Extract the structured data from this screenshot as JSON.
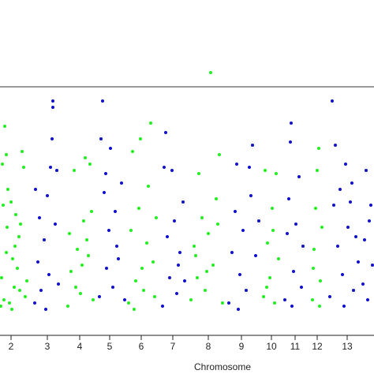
{
  "chart_data": {
    "type": "scatter",
    "x_label": "Chromosome",
    "xlim": [
      0,
      474
    ],
    "ylim": [
      0,
      10
    ],
    "xticks": [
      {
        "value": 14,
        "label": "2"
      },
      {
        "value": 60,
        "label": "3"
      },
      {
        "value": 101,
        "label": "4"
      },
      {
        "value": 139,
        "label": "5"
      },
      {
        "value": 179,
        "label": "6"
      },
      {
        "value": 219,
        "label": "7"
      },
      {
        "value": 264,
        "label": "8"
      },
      {
        "value": 306,
        "label": "9"
      },
      {
        "value": 344,
        "label": "10"
      },
      {
        "value": 374,
        "label": "11"
      },
      {
        "value": 402,
        "label": "12"
      },
      {
        "value": 440,
        "label": "13"
      }
    ],
    "threshold": 7.25,
    "grid": false,
    "series": [
      {
        "color": "#22ee22",
        "x": [
          2,
          4,
          6,
          8,
          3,
          5,
          9,
          1,
          12,
          16,
          20,
          24,
          10,
          14,
          18,
          22,
          26,
          32,
          34,
          8,
          28,
          30,
          15,
          25,
          19,
          86,
          90,
          94,
          98,
          102,
          106,
          108,
          112,
          114,
          118,
          88,
          96,
          104,
          110,
          116,
          163,
          166,
          168,
          172,
          176,
          178,
          182,
          186,
          191,
          194,
          198,
          170,
          180,
          188,
          196,
          242,
          246,
          250,
          252,
          256,
          260,
          264,
          267,
          270,
          274,
          278,
          282,
          248,
          262,
          276,
          334,
          336,
          339,
          342,
          345,
          348,
          350,
          353,
          338,
          346,
          396,
          398,
          400,
          402,
          404,
          406,
          408,
          397,
          405
        ],
        "values": [
          1.2,
          3.5,
          6.0,
          2.0,
          4.8,
          0.5,
          2.8,
          0.3,
          0.4,
          1.8,
          3.2,
          2.5,
          4.0,
          3.6,
          0.9,
          1.5,
          2.9,
          0.6,
          1.1,
          5.1,
          5.2,
          4.7,
          0.2,
          0.8,
          2.2,
          0.3,
          1.4,
          4.6,
          2.1,
          0.7,
          3.0,
          5.0,
          1.9,
          4.8,
          0.5,
          2.6,
          0.9,
          1.6,
          2.4,
          3.3,
          0.4,
          2.7,
          5.2,
          1.1,
          3.4,
          5.6,
          0.8,
          2.3,
          6.1,
          1.7,
          3.1,
          0.2,
          1.5,
          4.1,
          0.6,
          0.5,
          2.2,
          1.2,
          4.5,
          3.1,
          0.8,
          2.6,
          7.7,
          1.6,
          3.7,
          5.1,
          0.4,
          1.9,
          1.4,
          2.9,
          0.6,
          4.6,
          2.3,
          1.2,
          3.4,
          0.4,
          4.5,
          1.8,
          0.9,
          2.7,
          0.5,
          2.1,
          3.4,
          4.6,
          5.3,
          1.1,
          2.8,
          1.5,
          0.3
        ]
      },
      {
        "color": "#1010cc",
        "x": [
          44,
          45,
          48,
          52,
          56,
          60,
          62,
          64,
          66,
          67,
          67,
          70,
          72,
          74,
          50,
          58,
          126,
          128,
          130,
          132,
          135,
          138,
          140,
          143,
          146,
          150,
          154,
          158,
          134,
          148,
          206,
          208,
          210,
          212,
          215,
          218,
          221,
          224,
          228,
          232,
          234,
          226,
          290,
          294,
          298,
          300,
          304,
          308,
          312,
          316,
          320,
          324,
          328,
          302,
          318,
          361,
          364,
          366,
          368,
          369,
          372,
          375,
          379,
          382,
          384,
          370,
          418,
          421,
          423,
          425,
          428,
          431,
          434,
          438,
          441,
          444,
          448,
          451,
          454,
          436,
          446,
          460,
          462,
          464,
          466,
          468,
          470,
          472
        ],
        "values": [
          0.4,
          4.0,
          1.7,
          0.8,
          2.4,
          3.8,
          1.3,
          4.7,
          5.6,
          6.8,
          6.6,
          2.9,
          4.6,
          1.0,
          3.1,
          0.2,
          0.6,
          5.6,
          6.8,
          3.9,
          1.5,
          2.7,
          5.3,
          0.9,
          3.3,
          1.8,
          4.2,
          0.5,
          4.5,
          2.2,
          0.3,
          4.7,
          5.8,
          2.5,
          1.2,
          4.6,
          3.0,
          0.7,
          2.0,
          3.6,
          1.1,
          1.6,
          0.4,
          2.0,
          3.3,
          4.8,
          1.3,
          2.7,
          0.8,
          4.7,
          5.4,
          1.9,
          3.0,
          0.2,
          3.8,
          0.5,
          2.6,
          3.7,
          5.5,
          6.1,
          1.4,
          2.9,
          4.4,
          0.9,
          2.2,
          0.3,
          0.6,
          6.8,
          3.5,
          5.4,
          2.2,
          4.0,
          1.3,
          4.8,
          2.8,
          3.6,
          0.8,
          2.5,
          1.7,
          0.3,
          4.2,
          1.0,
          2.4,
          4.6,
          0.5,
          3.0,
          3.5,
          1.6
        ]
      }
    ]
  }
}
